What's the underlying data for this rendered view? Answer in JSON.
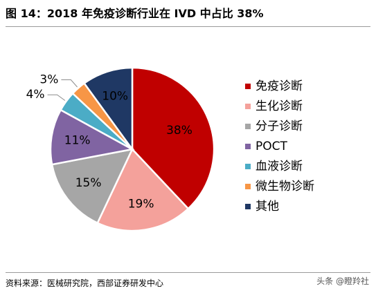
{
  "title": "图 14：2018 年免疫诊断行业在 IVD 中占比 38%",
  "source": "资料来源：医械研究院，西部证券研发中心",
  "watermark": "头条 @瞪羚社",
  "chart_data": {
    "type": "pie",
    "categories": [
      "免疫诊断",
      "生化诊断",
      "分子诊断",
      "POCT",
      "血液诊断",
      "微生物诊断",
      "其他"
    ],
    "values": [
      38,
      19,
      15,
      11,
      4,
      3,
      10
    ],
    "value_labels": [
      "38%",
      "19%",
      "15%",
      "11%",
      "4%",
      "3%",
      "10%"
    ],
    "colors": [
      "#c00000",
      "#f4a19b",
      "#a6a6a6",
      "#8064a2",
      "#4bacc6",
      "#f79646",
      "#1f3864"
    ],
    "legend_position": "right"
  }
}
